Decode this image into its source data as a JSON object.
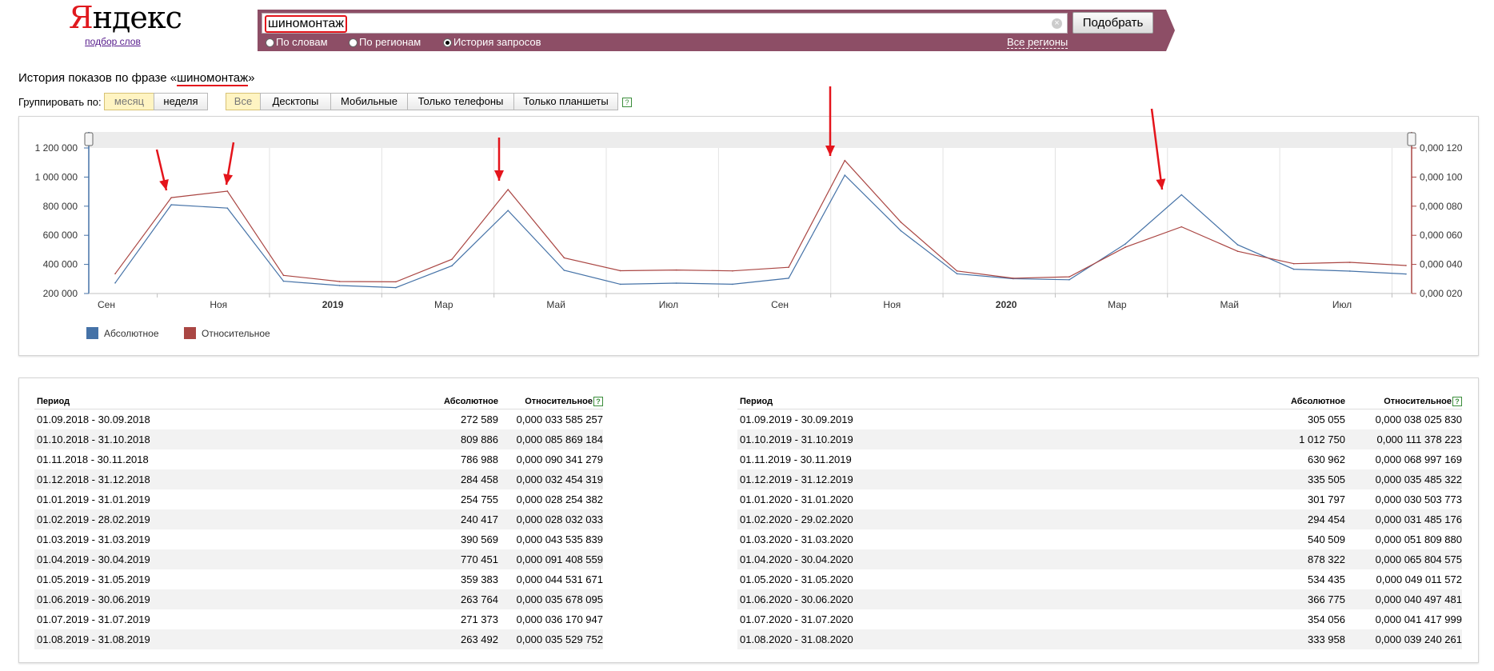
{
  "header": {
    "logo_first": "Я",
    "logo_rest": "ндекс",
    "logo_sub": "подбор слов",
    "search_value": "шиномонтаж",
    "search_button": "Подобрать",
    "clear_glyph": "×",
    "radio_words": "По словам",
    "radio_regions": "По регионам",
    "radio_history": "История запросов",
    "all_regions": "Все регионы"
  },
  "history": {
    "title_prefix": "История показов по фразе «",
    "phrase": "шиномонтаж",
    "title_suffix": "»",
    "group_label": "Группировать по:",
    "group_month": "месяц",
    "group_week": "неделя",
    "device_all": "Все",
    "device_desktops": "Десктопы",
    "device_mobile": "Мобильные",
    "device_phones": "Только телефоны",
    "device_tablets": "Только планшеты",
    "help_glyph": "?"
  },
  "colors": {
    "absolute": "#4572a7",
    "relative": "#aa4643",
    "arrow": "#e4141b",
    "accent": "#8d4e66"
  },
  "chart_data": {
    "type": "line",
    "x": [
      "2018-09",
      "2018-10",
      "2018-11",
      "2018-12",
      "2019-01",
      "2019-02",
      "2019-03",
      "2019-04",
      "2019-05",
      "2019-06",
      "2019-07",
      "2019-08",
      "2019-09",
      "2019-10",
      "2019-11",
      "2019-12",
      "2020-01",
      "2020-02",
      "2020-03",
      "2020-04",
      "2020-05",
      "2020-06",
      "2020-07",
      "2020-08"
    ],
    "x_tick_labels": [
      "Сен",
      "Ноя",
      "2019",
      "Мар",
      "Май",
      "Июл",
      "Сен",
      "Ноя",
      "2020",
      "Мар",
      "Май",
      "Июл"
    ],
    "y_left_labels": [
      "1 200 000",
      "1 000 000",
      "800 000",
      "600 000",
      "400 000",
      "200 000"
    ],
    "y_right_labels": [
      "0,000 120",
      "0,000 100",
      "0,000 080",
      "0,000 060",
      "0,000 040",
      "0,000 020"
    ],
    "ylim_left": [
      200000,
      1200000
    ],
    "ylim_right": [
      2e-05,
      0.00012
    ],
    "series": [
      {
        "name": "Абсолютное",
        "axis": "left",
        "values": [
          272589,
          809886,
          786988,
          284458,
          254755,
          240417,
          390569,
          770451,
          359383,
          263764,
          271373,
          263492,
          305055,
          1012750,
          630962,
          335505,
          301797,
          294454,
          540509,
          878322,
          534435,
          366775,
          354056,
          333958
        ]
      },
      {
        "name": "Относительное",
        "axis": "right",
        "values": [
          3.3585257e-05,
          8.5869184e-05,
          9.0341279e-05,
          3.2454319e-05,
          2.8254382e-05,
          2.8032033e-05,
          4.3535839e-05,
          9.1408559e-05,
          4.4531671e-05,
          3.5678095e-05,
          3.6170947e-05,
          3.5529752e-05,
          3.802583e-05,
          0.000111378223,
          6.8997169e-05,
          3.5485322e-05,
          3.0503773e-05,
          3.1485176e-05,
          5.180988e-05,
          6.5804575e-05,
          4.9011572e-05,
          4.0497481e-05,
          4.1417999e-05,
          3.9240261e-05
        ]
      }
    ],
    "grid": true,
    "legend_position": "bottom-left"
  },
  "table": {
    "headers": {
      "period": "Период",
      "absolute": "Абсолютное",
      "relative": "Относительное"
    },
    "left": [
      [
        "01.09.2018 - 30.09.2018",
        "272 589",
        "0,000 033 585 257"
      ],
      [
        "01.10.2018 - 31.10.2018",
        "809 886",
        "0,000 085 869 184"
      ],
      [
        "01.11.2018 - 30.11.2018",
        "786 988",
        "0,000 090 341 279"
      ],
      [
        "01.12.2018 - 31.12.2018",
        "284 458",
        "0,000 032 454 319"
      ],
      [
        "01.01.2019 - 31.01.2019",
        "254 755",
        "0,000 028 254 382"
      ],
      [
        "01.02.2019 - 28.02.2019",
        "240 417",
        "0,000 028 032 033"
      ],
      [
        "01.03.2019 - 31.03.2019",
        "390 569",
        "0,000 043 535 839"
      ],
      [
        "01.04.2019 - 30.04.2019",
        "770 451",
        "0,000 091 408 559"
      ],
      [
        "01.05.2019 - 31.05.2019",
        "359 383",
        "0,000 044 531 671"
      ],
      [
        "01.06.2019 - 30.06.2019",
        "263 764",
        "0,000 035 678 095"
      ],
      [
        "01.07.2019 - 31.07.2019",
        "271 373",
        "0,000 036 170 947"
      ],
      [
        "01.08.2019 - 31.08.2019",
        "263 492",
        "0,000 035 529 752"
      ]
    ],
    "right": [
      [
        "01.09.2019 - 30.09.2019",
        "305 055",
        "0,000 038 025 830"
      ],
      [
        "01.10.2019 - 31.10.2019",
        "1 012 750",
        "0,000 111 378 223"
      ],
      [
        "01.11.2019 - 30.11.2019",
        "630 962",
        "0,000 068 997 169"
      ],
      [
        "01.12.2019 - 31.12.2019",
        "335 505",
        "0,000 035 485 322"
      ],
      [
        "01.01.2020 - 31.01.2020",
        "301 797",
        "0,000 030 503 773"
      ],
      [
        "01.02.2020 - 29.02.2020",
        "294 454",
        "0,000 031 485 176"
      ],
      [
        "01.03.2020 - 31.03.2020",
        "540 509",
        "0,000 051 809 880"
      ],
      [
        "01.04.2020 - 30.04.2020",
        "878 322",
        "0,000 065 804 575"
      ],
      [
        "01.05.2020 - 31.05.2020",
        "534 435",
        "0,000 049 011 572"
      ],
      [
        "01.06.2020 - 30.06.2020",
        "366 775",
        "0,000 040 497 481"
      ],
      [
        "01.07.2020 - 31.07.2020",
        "354 056",
        "0,000 041 417 999"
      ],
      [
        "01.08.2020 - 31.08.2020",
        "333 958",
        "0,000 039 240 261"
      ]
    ]
  }
}
